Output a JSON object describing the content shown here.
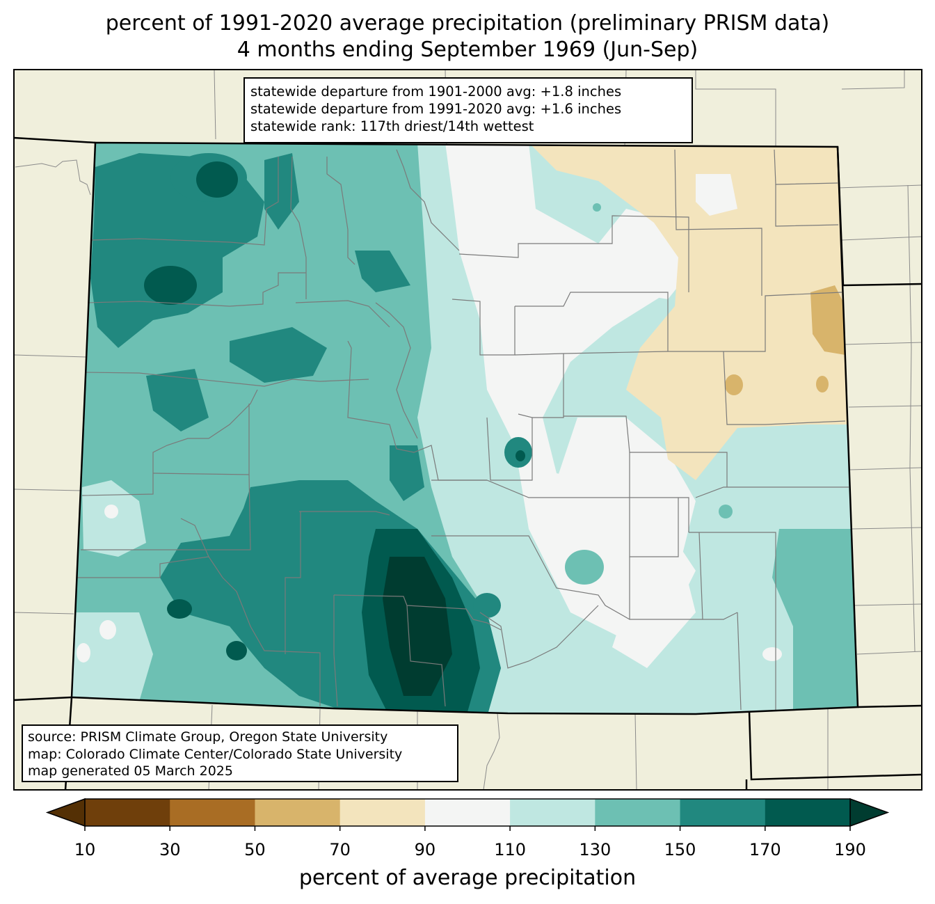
{
  "title": {
    "line1": "percent of 1991-2020 average precipitation (preliminary PRISM data)",
    "line2": "4 months ending September 1969 (Jun-Sep)"
  },
  "stats": {
    "line1": "statewide departure from 1901-2000 avg: +1.8 inches",
    "line2": "statewide departure from 1991-2020 avg: +1.6 inches",
    "line3": "statewide rank: 117th driest/14th wettest"
  },
  "source": {
    "line1": "source: PRISM Climate Group, Oregon State University",
    "line2": "map: Colorado Climate Center/Colorado State University",
    "line3": "map generated 05 March 2025"
  },
  "colorbar": {
    "label": "percent of average precipitation",
    "ticks": [
      "10",
      "30",
      "50",
      "70",
      "90",
      "110",
      "130",
      "150",
      "170",
      "190"
    ],
    "under_color": "#543005",
    "over_color": "#003c30",
    "bin_colors": [
      "#6f3f0b",
      "#a96d24",
      "#d8b46b",
      "#f3e4bd",
      "#f4f5f4",
      "#bfe7e1",
      "#6dc0b3",
      "#21887f",
      "#015a4f"
    ]
  },
  "map": {
    "region": "Colorado",
    "background_color": "#f0efdc",
    "state_border_color": "#000000",
    "county_border_color": "#808080"
  }
}
